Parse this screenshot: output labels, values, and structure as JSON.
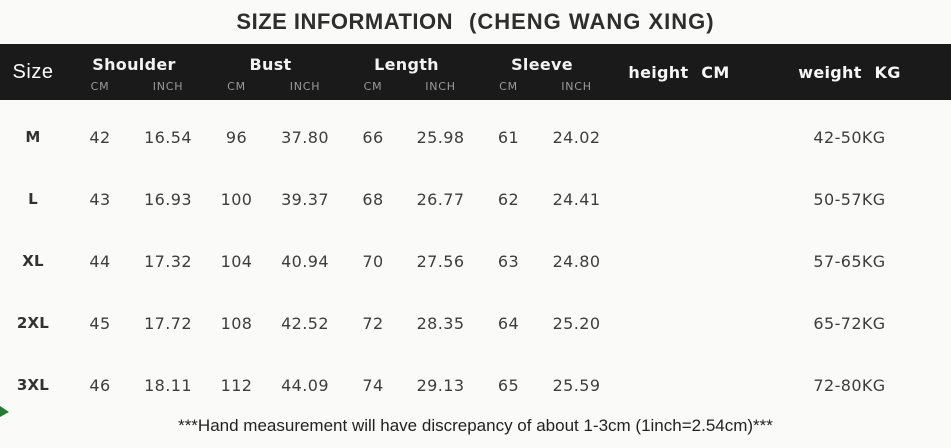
{
  "title": {
    "main": "SIZE INFORMATION",
    "brand": "(CHENG WANG XING)"
  },
  "table": {
    "size_column_header": "Size",
    "groups": {
      "shoulder": "Shoulder",
      "bust": "Bust",
      "length": "Length",
      "sleeve": "Sleeve"
    },
    "unit_cm": "CM",
    "unit_inch": "INCH",
    "height_column_header": "height CM",
    "weight_column_header": "weight KG",
    "rows": [
      {
        "size": "M",
        "shoulder_cm": "42",
        "shoulder_inch": "16.54",
        "bust_cm": "96",
        "bust_inch": "37.80",
        "length_cm": "66",
        "length_inch": "25.98",
        "sleeve_cm": "61",
        "sleeve_inch": "24.02",
        "height": "",
        "weight": "42-50KG"
      },
      {
        "size": "L",
        "shoulder_cm": "43",
        "shoulder_inch": "16.93",
        "bust_cm": "100",
        "bust_inch": "39.37",
        "length_cm": "68",
        "length_inch": "26.77",
        "sleeve_cm": "62",
        "sleeve_inch": "24.41",
        "height": "",
        "weight": "50-57KG"
      },
      {
        "size": "XL",
        "shoulder_cm": "44",
        "shoulder_inch": "17.32",
        "bust_cm": "104",
        "bust_inch": "40.94",
        "length_cm": "70",
        "length_inch": "27.56",
        "sleeve_cm": "63",
        "sleeve_inch": "24.80",
        "height": "",
        "weight": "57-65KG"
      },
      {
        "size": "2XL",
        "shoulder_cm": "45",
        "shoulder_inch": "17.72",
        "bust_cm": "108",
        "bust_inch": "42.52",
        "length_cm": "72",
        "length_inch": "28.35",
        "sleeve_cm": "64",
        "sleeve_inch": "25.20",
        "height": "",
        "weight": "65-72KG"
      },
      {
        "size": "3XL",
        "shoulder_cm": "46",
        "shoulder_inch": "18.11",
        "bust_cm": "112",
        "bust_inch": "44.09",
        "length_cm": "74",
        "length_inch": "29.13",
        "sleeve_cm": "65",
        "sleeve_inch": "25.59",
        "height": "",
        "weight": "72-80KG"
      }
    ]
  },
  "footer_note": "***Hand measurement will have discrepancy of about 1-3cm (1inch=2.54cm)***",
  "colors": {
    "header_bg": "#1a1a1a",
    "header_text": "#f5f5f5",
    "unit_text": "#9a9a9a",
    "body_text": "#3d3d3d",
    "accent_green": "#227a35",
    "page_bg": "#fafaf8"
  }
}
